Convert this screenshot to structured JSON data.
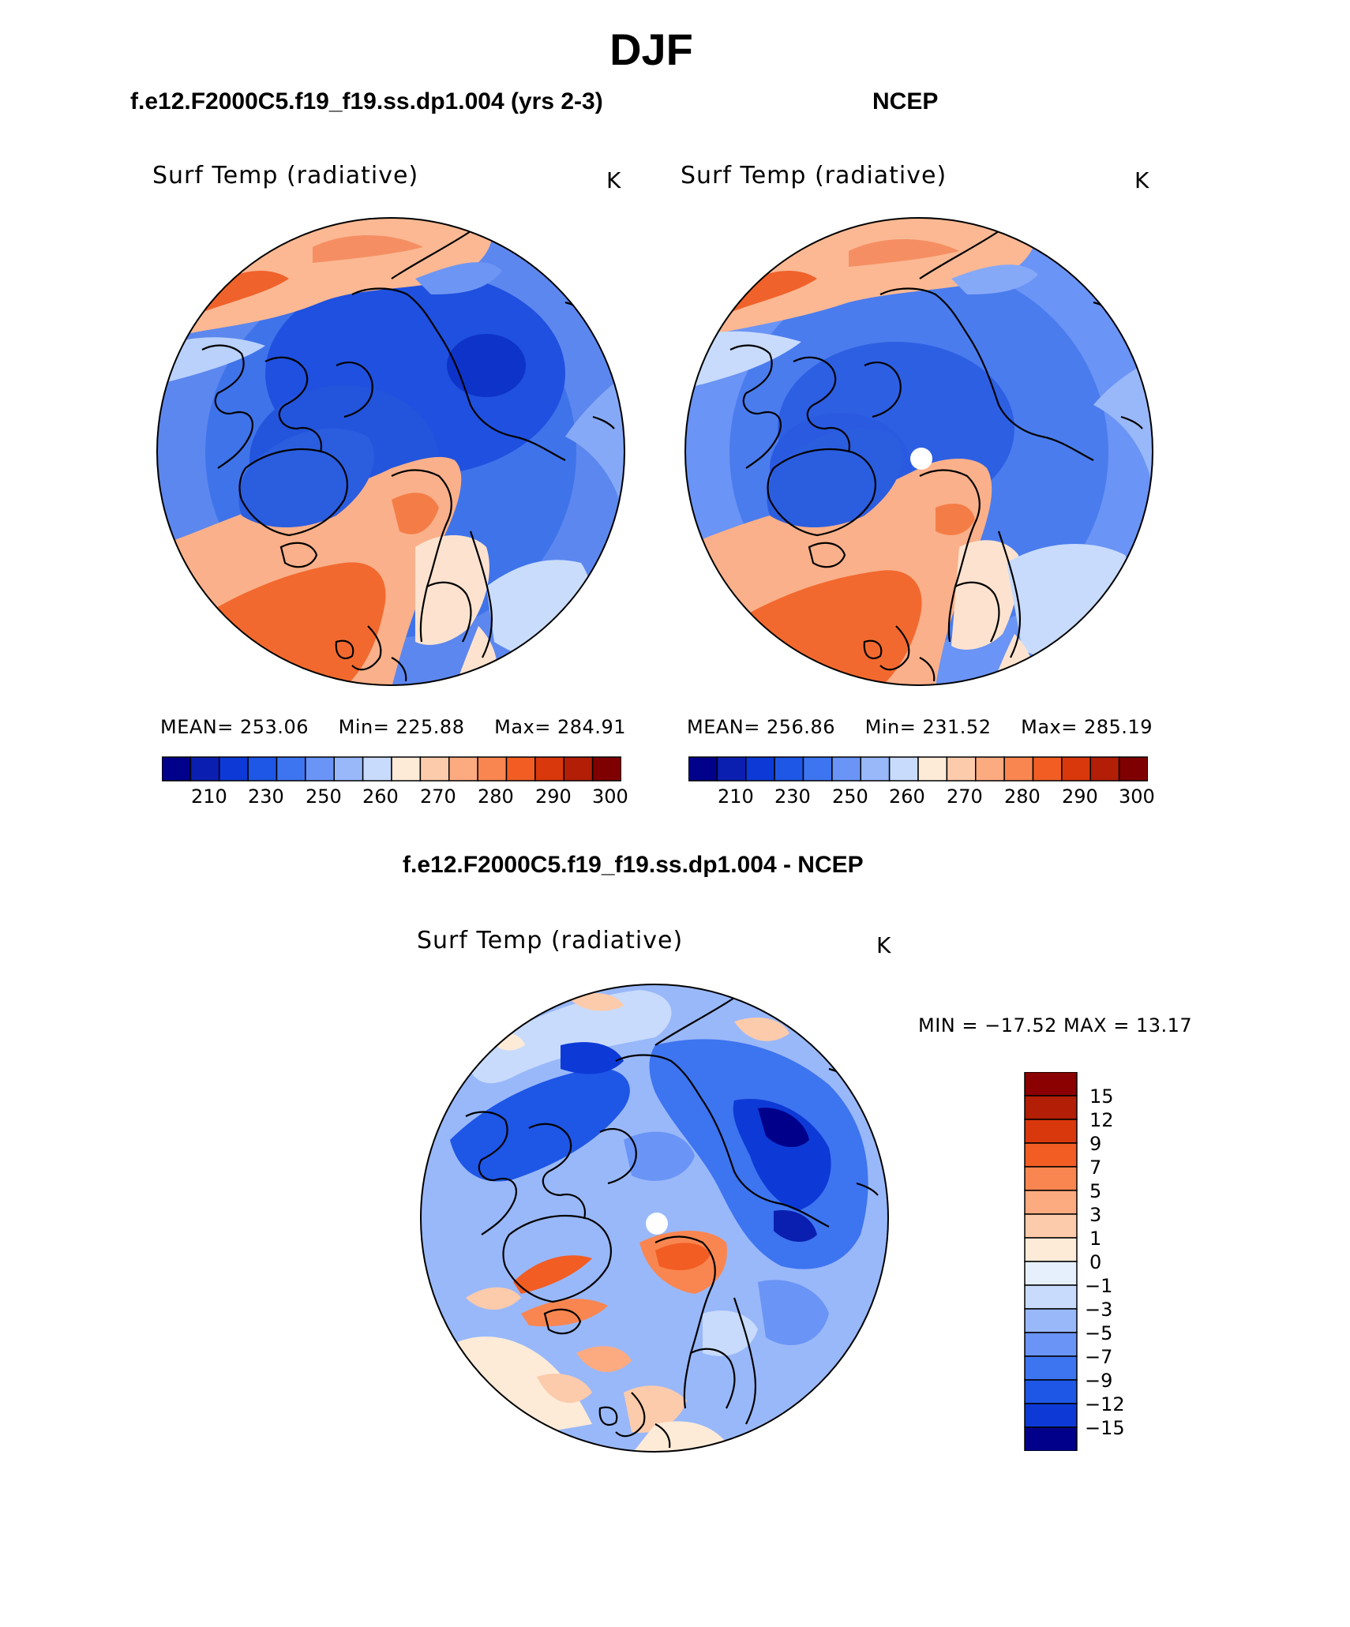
{
  "season_title": "DJF",
  "panels": [
    {
      "case_title": "f.e12.F2000C5.f19_f19.ss.dp1.004 (yrs 2-3)",
      "variable": "Surf Temp (radiative)",
      "units": "K",
      "stats": {
        "mean_label": "MEAN=",
        "mean": "253.06",
        "min_label": "Min=",
        "min": "225.88",
        "max_label": "Max=",
        "max": "284.91"
      },
      "pole_hole": false
    },
    {
      "case_title": "NCEP",
      "variable": "Surf Temp (radiative)",
      "units": "K",
      "stats": {
        "mean_label": "MEAN=",
        "mean": "256.86",
        "min_label": "Min=",
        "min": "231.52",
        "max_label": "Max=",
        "max": "285.19"
      },
      "pole_hole": true
    }
  ],
  "abs_colorbar": {
    "colors": [
      "#00008b",
      "#0a1fb0",
      "#0d3ad6",
      "#1e56e6",
      "#3d74f0",
      "#6a94f5",
      "#99b8fa",
      "#c8dbfc",
      "#fdebd8",
      "#fccbab",
      "#fcaa80",
      "#f98650",
      "#f15d23",
      "#d9380c",
      "#b21e06",
      "#7f0000"
    ],
    "tick_labels": [
      "210",
      "230",
      "250",
      "260",
      "270",
      "280",
      "290",
      "300"
    ]
  },
  "diff_panel": {
    "case_title": "f.e12.F2000C5.f19_f19.ss.dp1.004 - NCEP",
    "variable": "Surf Temp (radiative)",
    "units": "K",
    "minmax_text": "MIN = −17.52 MAX =   13.17",
    "colorbar_colors_top_to_bottom": [
      "#8b0000",
      "#b21e06",
      "#d9380c",
      "#f15d23",
      "#f98650",
      "#fcaa80",
      "#fccbab",
      "#fdebd8",
      "#e6f0fd",
      "#c8dbfc",
      "#99b8fa",
      "#6a94f5",
      "#3d74f0",
      "#1e56e6",
      "#0d3ad6",
      "#00008b"
    ],
    "tick_labels": [
      "15",
      "12",
      "9",
      "7",
      "5",
      "3",
      "1",
      "0",
      "−1",
      "−3",
      "−5",
      "−7",
      "−9",
      "−12",
      "−15"
    ]
  }
}
